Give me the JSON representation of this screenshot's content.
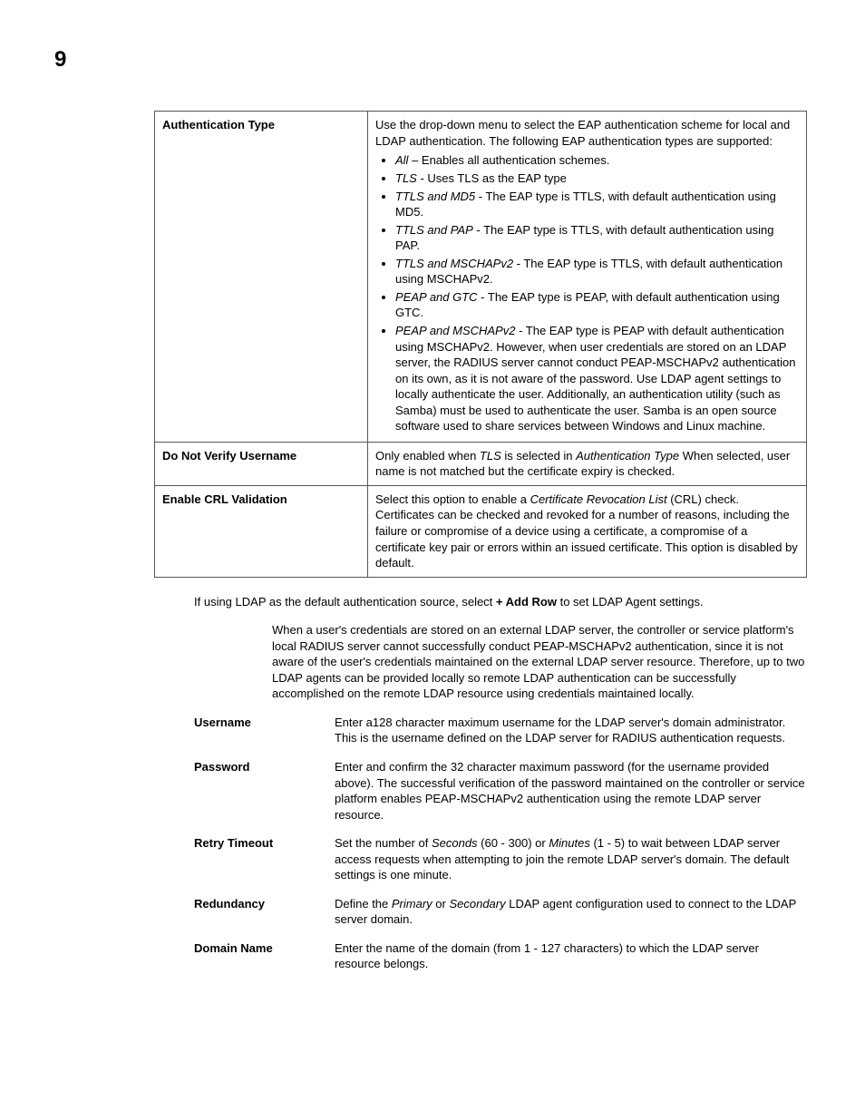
{
  "pageNumber": "9",
  "table": {
    "rows": [
      {
        "label": "Authentication Type",
        "intro": "Use the drop-down menu to select the EAP authentication scheme for local and LDAP authentication. The following EAP authentication types are supported:",
        "bullets": [
          {
            "term": "All",
            "sep": " – ",
            "desc": "Enables all authentication schemes."
          },
          {
            "term": "TLS",
            "sep": " - ",
            "desc": "Uses TLS as the EAP type"
          },
          {
            "term": "TTLS and MD5",
            "sep": " - ",
            "desc": "The EAP type is TTLS, with default authentication using MD5."
          },
          {
            "term": "TTLS and PAP",
            "sep": " - ",
            "desc": "The EAP type is TTLS, with default authentication using PAP."
          },
          {
            "term": "TTLS and MSCHAPv2",
            "sep": " - ",
            "desc": "The EAP type is TTLS, with default authentication using MSCHAPv2."
          },
          {
            "term": "PEAP and GTC",
            "sep": " - ",
            "desc": "The EAP type is PEAP, with default authentication using GTC."
          },
          {
            "term": "PEAP and MSCHAPv2",
            "sep": " - ",
            "desc": "The EAP type is PEAP with default authentication using MSCHAPv2. However, when user credentials are stored on an LDAP server, the RADIUS server cannot conduct PEAP-MSCHAPv2 authentication on its own, as it is not aware of the password. Use LDAP agent settings to locally authenticate the user. Additionally, an authentication utility (such as Samba) must be used to authenticate the user. Samba is an open source software used to share services between Windows and Linux machine."
          }
        ]
      },
      {
        "label": "Do Not Verify Username",
        "segments": [
          {
            "t": "Only enabled when "
          },
          {
            "t": "TLS",
            "i": true
          },
          {
            "t": " is selected in "
          },
          {
            "t": "Authentication Type",
            "i": true
          },
          {
            "t": " When selected, user name is not matched but the certificate expiry is checked."
          }
        ]
      },
      {
        "label": "Enable CRL Validation",
        "segments": [
          {
            "t": "Select this option to enable a "
          },
          {
            "t": "Certificate Revocation List",
            "i": true
          },
          {
            "t": " (CRL) check. Certificates can be checked and revoked for a number of reasons, including the failure or compromise of a device using a certificate, a compromise of a certificate key pair or errors within an issued certificate. This option is disabled by default."
          }
        ]
      }
    ]
  },
  "para1": {
    "segments": [
      {
        "t": "If using LDAP as the default authentication source, select "
      },
      {
        "t": "+ Add Row",
        "b": true
      },
      {
        "t": " to set LDAP Agent settings."
      }
    ]
  },
  "para2": "When a user's credentials are stored on an external LDAP server, the controller or service platform's local RADIUS server cannot successfully conduct PEAP-MSCHAPv2 authentication, since it is not aware of the user's credentials maintained on the external LDAP server resource. Therefore, up to two LDAP agents can be provided locally so remote LDAP authentication can be successfully accomplished on the remote LDAP resource using credentials maintained locally.",
  "defs": [
    {
      "label": "Username",
      "segments": [
        {
          "t": "Enter a128 character maximum username for the LDAP server's domain administrator. This is the username defined on the LDAP server for RADIUS authentication requests."
        }
      ]
    },
    {
      "label": "Password",
      "segments": [
        {
          "t": "Enter and confirm the 32 character maximum password (for the username provided above). The successful verification of the password maintained on the controller or service platform enables PEAP-MSCHAPv2 authentication using the remote LDAP server resource."
        }
      ]
    },
    {
      "label": "Retry Timeout",
      "segments": [
        {
          "t": "Set the number of "
        },
        {
          "t": "Seconds",
          "i": true
        },
        {
          "t": " (60 - 300) or "
        },
        {
          "t": "Minutes",
          "i": true
        },
        {
          "t": " (1 - 5) to wait between LDAP server access requests when attempting to join the remote LDAP server's domain. The default settings is one minute."
        }
      ]
    },
    {
      "label": "Redundancy",
      "segments": [
        {
          "t": "Define the "
        },
        {
          "t": "Primary",
          "i": true
        },
        {
          "t": " or "
        },
        {
          "t": "Secondary",
          "i": true
        },
        {
          "t": " LDAP agent configuration used to connect to the LDAP server domain."
        }
      ]
    },
    {
      "label": "Domain Name",
      "segments": [
        {
          "t": "Enter the name of the domain (from 1 - 127 characters) to which the LDAP server resource belongs."
        }
      ]
    }
  ]
}
